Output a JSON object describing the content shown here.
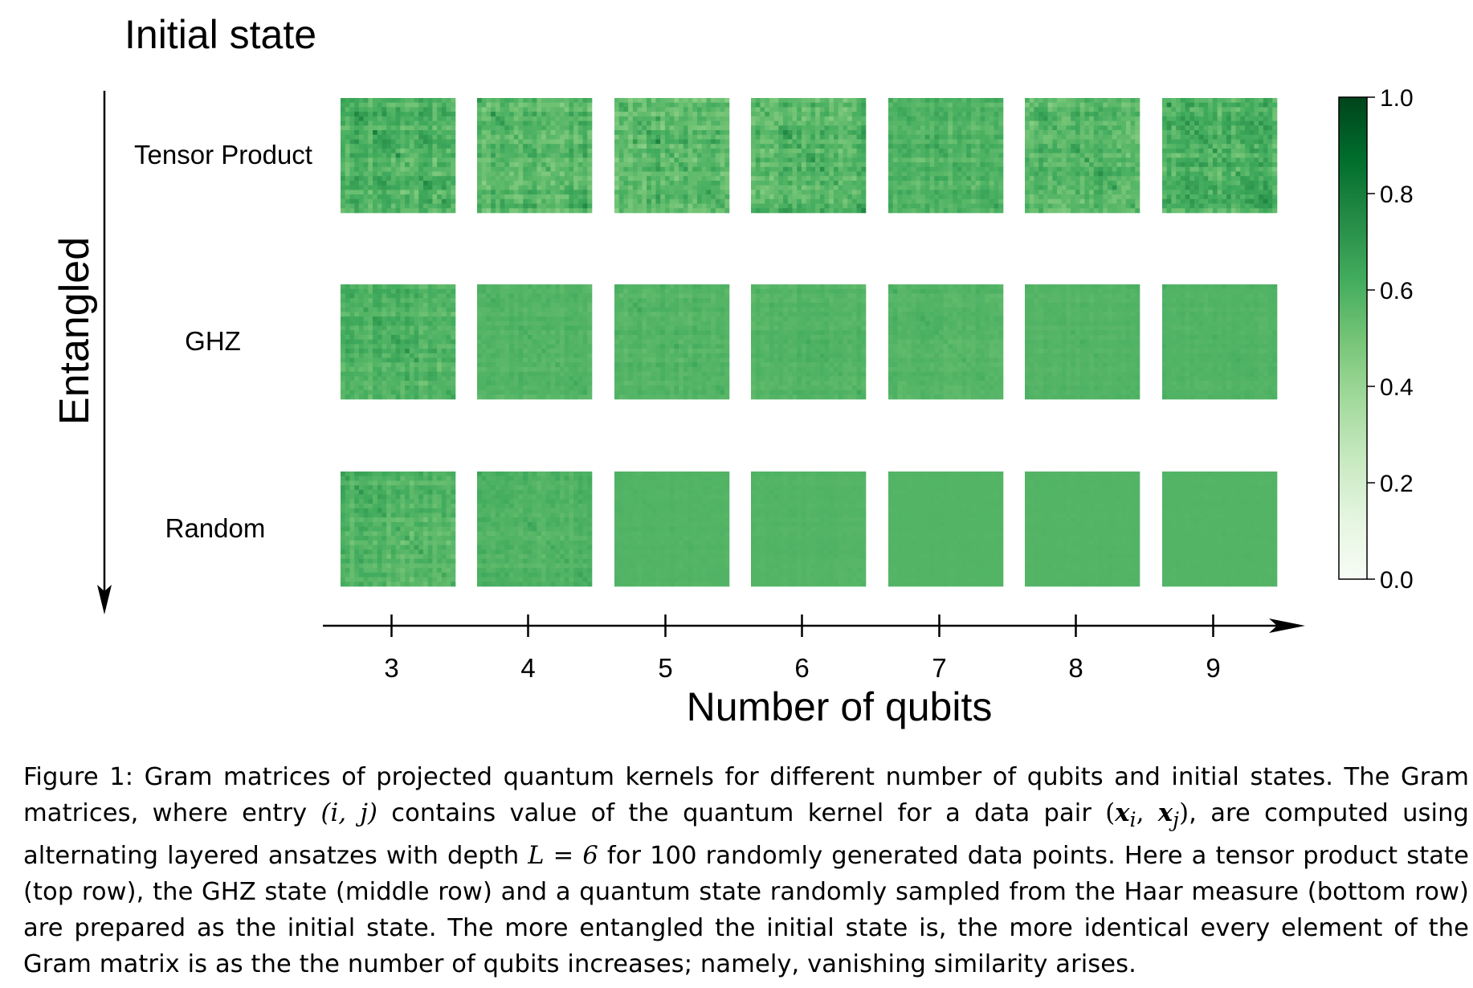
{
  "chart_data": {
    "type": "heatmap",
    "title": "Initial state",
    "ylabel": "Entangled",
    "xlabel": "Number of qubits",
    "columns": [
      "3",
      "4",
      "5",
      "6",
      "7",
      "8",
      "9"
    ],
    "rows": [
      "Tensor Product",
      "GHZ",
      "Random"
    ],
    "colorbar": {
      "min": 0.0,
      "max": 1.0,
      "ticks": [
        "0.0",
        "0.2",
        "0.4",
        "0.6",
        "0.8",
        "1.0"
      ],
      "colormap": "Greens"
    },
    "matrix_size": 100,
    "texture_variation": [
      [
        0.95,
        0.85,
        0.95,
        0.85,
        0.55,
        0.85,
        0.9
      ],
      [
        0.6,
        0.3,
        0.3,
        0.25,
        0.25,
        0.15,
        0.15
      ],
      [
        0.6,
        0.35,
        0.1,
        0.08,
        0.05,
        0.05,
        0.04
      ]
    ],
    "mean_value": 0.58,
    "colors": {
      "cell_base": "#82c281",
      "colorbar_light": "#f7fcf5",
      "colorbar_dark": "#00441b"
    }
  },
  "caption": {
    "label": "Figure 1:",
    "s1": "Gram matrices of projected quantum kernels for different number of qubits and initial states.  The Gram matrices, where entry ",
    "m1": "(i, j)",
    "s2": " contains value of the quantum kernel for a data pair ",
    "m2_open": "(",
    "m2_a": "x",
    "m2_a_sub": "i",
    "m2_sep": ", ",
    "m2_b": "x",
    "m2_b_sub": "j",
    "m2_close": ")",
    "s3": ", are computed using alternating layered ansatzes with depth ",
    "m3": "L = 6",
    "s4": " for 100 randomly generated data points.  Here a tensor product state (top row), the GHZ state (middle row) and a quantum state randomly sampled from the Haar measure (bottom row) are prepared as the initial state.  The more entangled the initial state is, the more identical every element of the Gram matrix is as the the number of qubits increases; namely, vanishing similarity arises."
  }
}
